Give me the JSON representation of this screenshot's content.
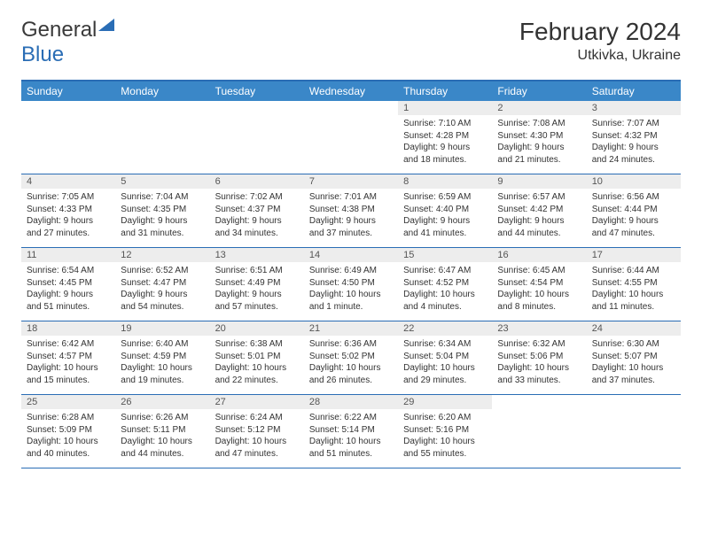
{
  "logo": {
    "text1": "General",
    "text2": "Blue"
  },
  "title": "February 2024",
  "location": "Utkivka, Ukraine",
  "dayNames": [
    "Sunday",
    "Monday",
    "Tuesday",
    "Wednesday",
    "Thursday",
    "Friday",
    "Saturday"
  ],
  "colors": {
    "headerBg": "#3a87c8",
    "border": "#2a6db5",
    "dayNumBg": "#ededed"
  },
  "weeks": [
    [
      {
        "n": "",
        "sr": "",
        "ss": "",
        "dl": ""
      },
      {
        "n": "",
        "sr": "",
        "ss": "",
        "dl": ""
      },
      {
        "n": "",
        "sr": "",
        "ss": "",
        "dl": ""
      },
      {
        "n": "",
        "sr": "",
        "ss": "",
        "dl": ""
      },
      {
        "n": "1",
        "sr": "Sunrise: 7:10 AM",
        "ss": "Sunset: 4:28 PM",
        "dl": "Daylight: 9 hours and 18 minutes."
      },
      {
        "n": "2",
        "sr": "Sunrise: 7:08 AM",
        "ss": "Sunset: 4:30 PM",
        "dl": "Daylight: 9 hours and 21 minutes."
      },
      {
        "n": "3",
        "sr": "Sunrise: 7:07 AM",
        "ss": "Sunset: 4:32 PM",
        "dl": "Daylight: 9 hours and 24 minutes."
      }
    ],
    [
      {
        "n": "4",
        "sr": "Sunrise: 7:05 AM",
        "ss": "Sunset: 4:33 PM",
        "dl": "Daylight: 9 hours and 27 minutes."
      },
      {
        "n": "5",
        "sr": "Sunrise: 7:04 AM",
        "ss": "Sunset: 4:35 PM",
        "dl": "Daylight: 9 hours and 31 minutes."
      },
      {
        "n": "6",
        "sr": "Sunrise: 7:02 AM",
        "ss": "Sunset: 4:37 PM",
        "dl": "Daylight: 9 hours and 34 minutes."
      },
      {
        "n": "7",
        "sr": "Sunrise: 7:01 AM",
        "ss": "Sunset: 4:38 PM",
        "dl": "Daylight: 9 hours and 37 minutes."
      },
      {
        "n": "8",
        "sr": "Sunrise: 6:59 AM",
        "ss": "Sunset: 4:40 PM",
        "dl": "Daylight: 9 hours and 41 minutes."
      },
      {
        "n": "9",
        "sr": "Sunrise: 6:57 AM",
        "ss": "Sunset: 4:42 PM",
        "dl": "Daylight: 9 hours and 44 minutes."
      },
      {
        "n": "10",
        "sr": "Sunrise: 6:56 AM",
        "ss": "Sunset: 4:44 PM",
        "dl": "Daylight: 9 hours and 47 minutes."
      }
    ],
    [
      {
        "n": "11",
        "sr": "Sunrise: 6:54 AM",
        "ss": "Sunset: 4:45 PM",
        "dl": "Daylight: 9 hours and 51 minutes."
      },
      {
        "n": "12",
        "sr": "Sunrise: 6:52 AM",
        "ss": "Sunset: 4:47 PM",
        "dl": "Daylight: 9 hours and 54 minutes."
      },
      {
        "n": "13",
        "sr": "Sunrise: 6:51 AM",
        "ss": "Sunset: 4:49 PM",
        "dl": "Daylight: 9 hours and 57 minutes."
      },
      {
        "n": "14",
        "sr": "Sunrise: 6:49 AM",
        "ss": "Sunset: 4:50 PM",
        "dl": "Daylight: 10 hours and 1 minute."
      },
      {
        "n": "15",
        "sr": "Sunrise: 6:47 AM",
        "ss": "Sunset: 4:52 PM",
        "dl": "Daylight: 10 hours and 4 minutes."
      },
      {
        "n": "16",
        "sr": "Sunrise: 6:45 AM",
        "ss": "Sunset: 4:54 PM",
        "dl": "Daylight: 10 hours and 8 minutes."
      },
      {
        "n": "17",
        "sr": "Sunrise: 6:44 AM",
        "ss": "Sunset: 4:55 PM",
        "dl": "Daylight: 10 hours and 11 minutes."
      }
    ],
    [
      {
        "n": "18",
        "sr": "Sunrise: 6:42 AM",
        "ss": "Sunset: 4:57 PM",
        "dl": "Daylight: 10 hours and 15 minutes."
      },
      {
        "n": "19",
        "sr": "Sunrise: 6:40 AM",
        "ss": "Sunset: 4:59 PM",
        "dl": "Daylight: 10 hours and 19 minutes."
      },
      {
        "n": "20",
        "sr": "Sunrise: 6:38 AM",
        "ss": "Sunset: 5:01 PM",
        "dl": "Daylight: 10 hours and 22 minutes."
      },
      {
        "n": "21",
        "sr": "Sunrise: 6:36 AM",
        "ss": "Sunset: 5:02 PM",
        "dl": "Daylight: 10 hours and 26 minutes."
      },
      {
        "n": "22",
        "sr": "Sunrise: 6:34 AM",
        "ss": "Sunset: 5:04 PM",
        "dl": "Daylight: 10 hours and 29 minutes."
      },
      {
        "n": "23",
        "sr": "Sunrise: 6:32 AM",
        "ss": "Sunset: 5:06 PM",
        "dl": "Daylight: 10 hours and 33 minutes."
      },
      {
        "n": "24",
        "sr": "Sunrise: 6:30 AM",
        "ss": "Sunset: 5:07 PM",
        "dl": "Daylight: 10 hours and 37 minutes."
      }
    ],
    [
      {
        "n": "25",
        "sr": "Sunrise: 6:28 AM",
        "ss": "Sunset: 5:09 PM",
        "dl": "Daylight: 10 hours and 40 minutes."
      },
      {
        "n": "26",
        "sr": "Sunrise: 6:26 AM",
        "ss": "Sunset: 5:11 PM",
        "dl": "Daylight: 10 hours and 44 minutes."
      },
      {
        "n": "27",
        "sr": "Sunrise: 6:24 AM",
        "ss": "Sunset: 5:12 PM",
        "dl": "Daylight: 10 hours and 47 minutes."
      },
      {
        "n": "28",
        "sr": "Sunrise: 6:22 AM",
        "ss": "Sunset: 5:14 PM",
        "dl": "Daylight: 10 hours and 51 minutes."
      },
      {
        "n": "29",
        "sr": "Sunrise: 6:20 AM",
        "ss": "Sunset: 5:16 PM",
        "dl": "Daylight: 10 hours and 55 minutes."
      },
      {
        "n": "",
        "sr": "",
        "ss": "",
        "dl": ""
      },
      {
        "n": "",
        "sr": "",
        "ss": "",
        "dl": ""
      }
    ]
  ]
}
